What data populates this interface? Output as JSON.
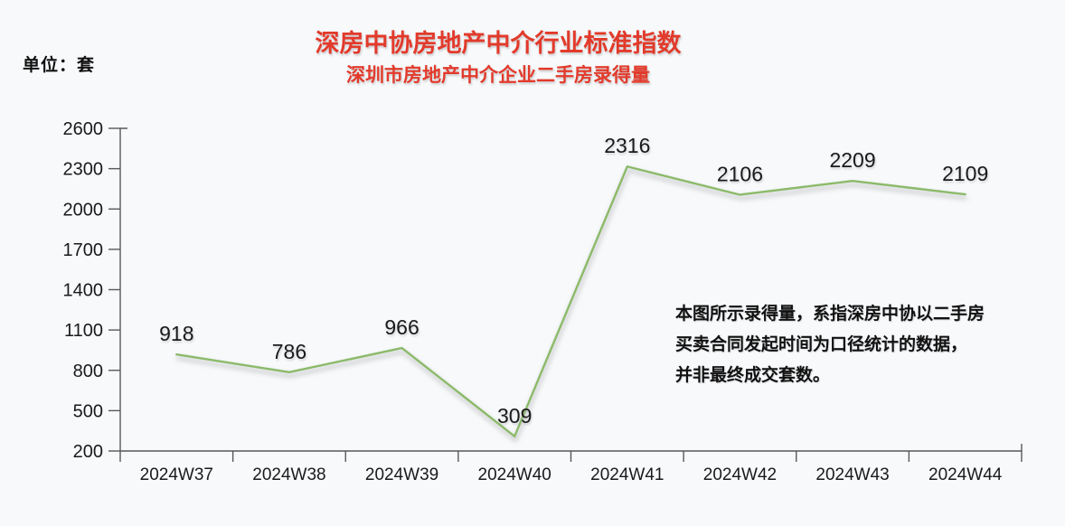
{
  "chart": {
    "unit_label": "单位：套",
    "title": "深房中协房地产中介行业标准指数",
    "subtitle": "深圳市房地产中介企业二手房录得量"
  },
  "annotation": {
    "lines": [
      "本图所示录得量，系指深房中协以二手房",
      "买卖合同发起时间为口径统计的数据，",
      "并非最终成交套数。"
    ]
  },
  "chart_data": {
    "type": "line",
    "title": "深房中协房地产中介行业标准指数",
    "subtitle": "深圳市房地产中介企业二手房录得量",
    "ylabel": "单位：套",
    "categories": [
      "2024W37",
      "2024W38",
      "2024W39",
      "2024W40",
      "2024W41",
      "2024W42",
      "2024W43",
      "2024W44"
    ],
    "values": [
      918,
      786,
      966,
      309,
      2316,
      2106,
      2209,
      2109
    ],
    "ylim": [
      200,
      2600
    ],
    "yticks": [
      200,
      500,
      800,
      1100,
      1400,
      1700,
      2000,
      2300,
      2600
    ],
    "grid": false,
    "legend_position": "none",
    "data_labels": true,
    "colors": {
      "line": "#8cba6a",
      "title": "#e23a2b",
      "axis": "#595959",
      "text": "#1a1a1a",
      "background": "#f7f9fb"
    }
  }
}
